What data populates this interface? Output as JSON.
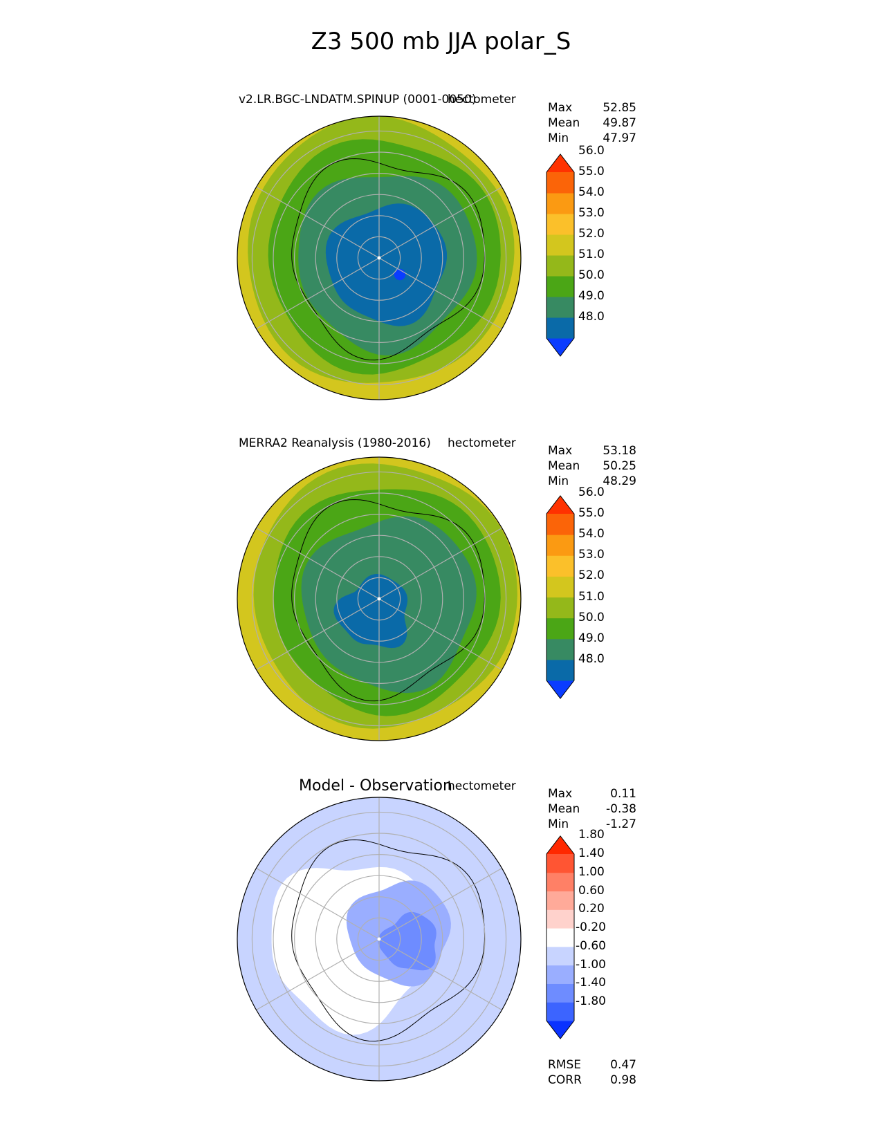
{
  "title": "Z3 500 mb JJA polar_S",
  "chart_data": [
    {
      "type": "heatmap",
      "projection": "south-polar-stereographic",
      "title": "v2.LR.BGC-LNDATM.SPINUP (0001-0050)",
      "units": "hectometer",
      "stats": [
        {
          "label": "Max",
          "value": "52.85"
        },
        {
          "label": "Mean",
          "value": "49.87"
        },
        {
          "label": "Min",
          "value": "47.97"
        }
      ],
      "colorbar": {
        "levels": [
          "48.0",
          "49.0",
          "50.0",
          "51.0",
          "52.0",
          "53.0",
          "54.0",
          "55.0",
          "56.0"
        ],
        "colors": [
          "#0a3cff",
          "#0a6aa8",
          "#378a62",
          "#4ba616",
          "#94b81a",
          "#d3c61e",
          "#fbc02a",
          "#fb9a12",
          "#fb6408",
          "#ff3200"
        ],
        "extend": "both"
      },
      "bands": [
        {
          "value": 52.5,
          "color": "#d3c61e"
        },
        {
          "value": 51.5,
          "color": "#94b81a"
        },
        {
          "value": 50.5,
          "color": "#4ba616"
        },
        {
          "value": 49.5,
          "color": "#378a62"
        },
        {
          "value": 48.5,
          "color": "#0a6aa8"
        },
        {
          "value": 47.97,
          "color": "#0a3cff"
        }
      ]
    },
    {
      "type": "heatmap",
      "projection": "south-polar-stereographic",
      "title": "MERRA2 Reanalysis (1980-2016)",
      "units": "hectometer",
      "stats": [
        {
          "label": "Max",
          "value": "53.18"
        },
        {
          "label": "Mean",
          "value": "50.25"
        },
        {
          "label": "Min",
          "value": "48.29"
        }
      ],
      "colorbar": {
        "levels": [
          "48.0",
          "49.0",
          "50.0",
          "51.0",
          "52.0",
          "53.0",
          "54.0",
          "55.0",
          "56.0"
        ],
        "colors": [
          "#0a3cff",
          "#0a6aa8",
          "#378a62",
          "#4ba616",
          "#94b81a",
          "#d3c61e",
          "#fbc02a",
          "#fb9a12",
          "#fb6408",
          "#ff3200"
        ],
        "extend": "both"
      },
      "bands": [
        {
          "value": 52.5,
          "color": "#d3c61e"
        },
        {
          "value": 51.5,
          "color": "#94b81a"
        },
        {
          "value": 50.5,
          "color": "#4ba616"
        },
        {
          "value": 49.5,
          "color": "#378a62"
        },
        {
          "value": 48.5,
          "color": "#0a6aa8"
        }
      ]
    },
    {
      "type": "heatmap",
      "projection": "south-polar-stereographic",
      "title": "Model - Observation",
      "units": "hectometer",
      "stats": [
        {
          "label": "Max",
          "value": "0.11"
        },
        {
          "label": "Mean",
          "value": "-0.38"
        },
        {
          "label": "Min",
          "value": "-1.27"
        }
      ],
      "colorbar": {
        "levels": [
          "-1.80",
          "-1.40",
          "-1.00",
          "-0.60",
          "-0.20",
          "0.20",
          "0.60",
          "1.00",
          "1.40",
          "1.80"
        ],
        "colors": [
          "#0a32ff",
          "#3c64ff",
          "#6e8cff",
          "#9aaeff",
          "#c8d4ff",
          "#ffffff",
          "#ffd2cc",
          "#ffaa99",
          "#ff8066",
          "#ff5533",
          "#ff2800"
        ],
        "extend": "both"
      },
      "bands": [
        {
          "value": -0.4,
          "color": "#c8d4ff"
        },
        {
          "value": 0.0,
          "color": "#ffffff"
        },
        {
          "value": -0.8,
          "color": "#9aaeff"
        },
        {
          "value": -1.2,
          "color": "#6e8cff"
        }
      ],
      "metrics": [
        {
          "label": "RMSE",
          "value": "0.47"
        },
        {
          "label": "CORR",
          "value": "0.98"
        }
      ]
    }
  ]
}
